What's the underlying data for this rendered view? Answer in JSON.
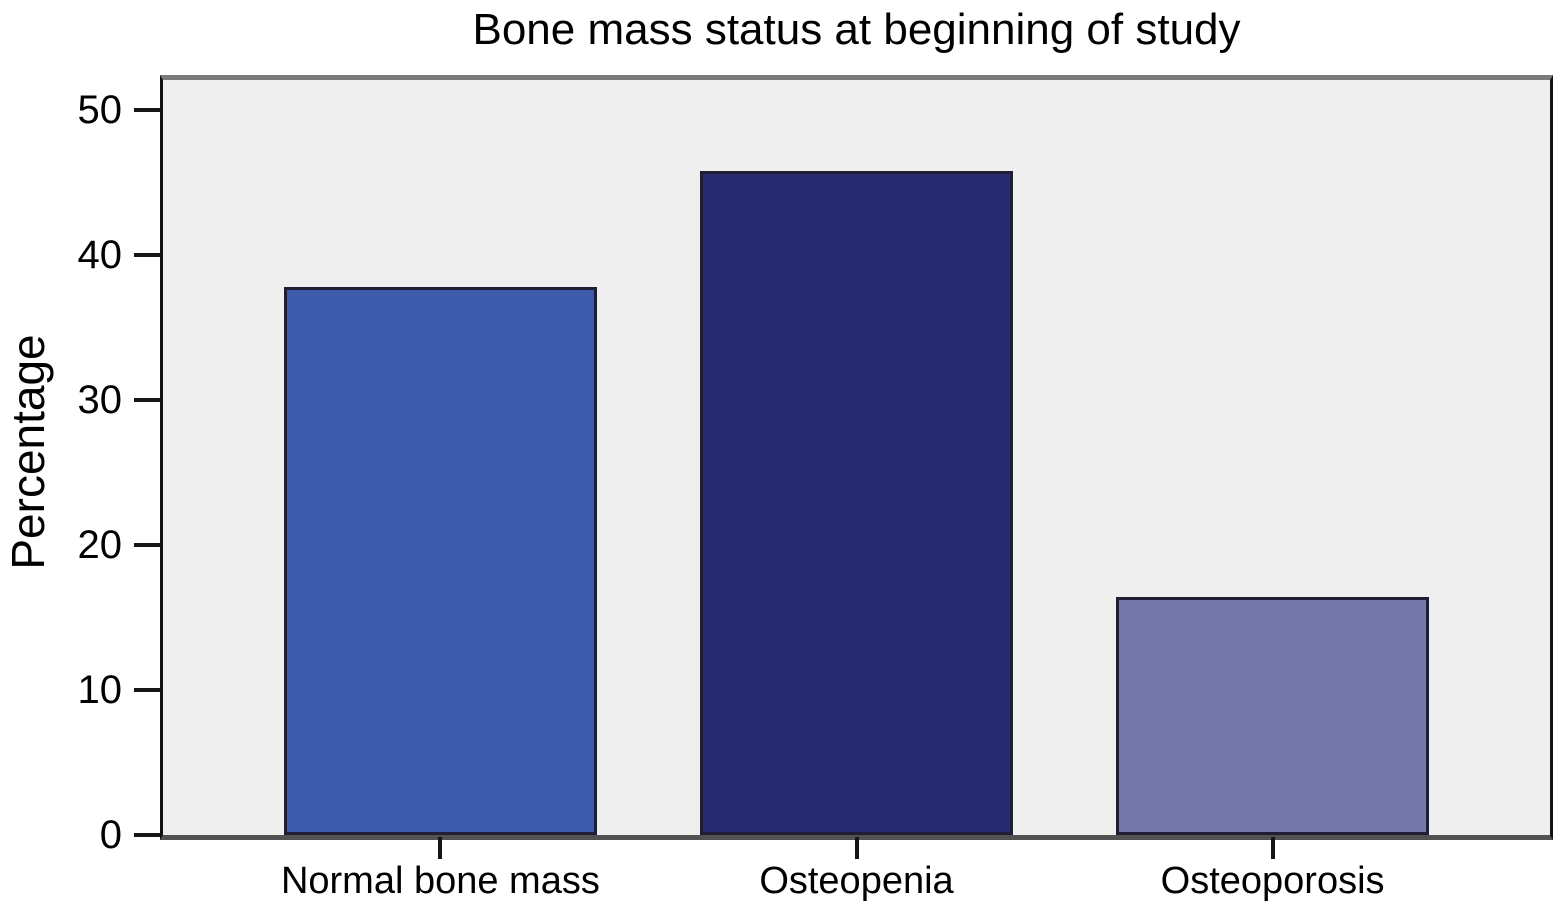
{
  "chart_data": {
    "type": "bar",
    "title": "Bone mass status at beginning of study",
    "xlabel": "",
    "ylabel": "Percentage",
    "categories": [
      "Normal bone mass",
      "Osteopenia",
      "Osteoporosis"
    ],
    "values": [
      37.8,
      45.8,
      16.4
    ],
    "yticks": [
      0,
      10,
      20,
      30,
      40,
      50
    ],
    "ylim": [
      0,
      52.6
    ],
    "grid": false,
    "legend_position": "none",
    "bar_colors": [
      "#3d5aab",
      "#292b70",
      "#7678ac"
    ],
    "bar_border_color": "#1f1f33",
    "plot_background": "#f0efef",
    "frame_color_top": "#7a7a7a",
    "frame_color_sides": "#131313",
    "text_color": "#000000"
  }
}
